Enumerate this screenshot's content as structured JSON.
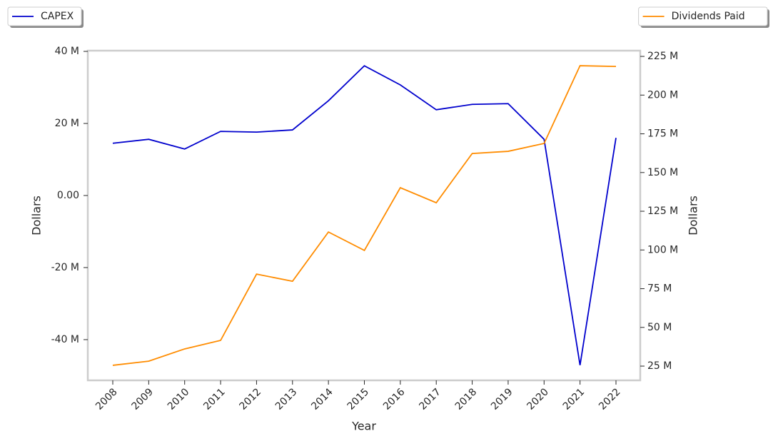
{
  "chart_data": {
    "type": "line",
    "x_label": "Year",
    "y_label": "Dollars",
    "y2_label": "Dollars",
    "categories": [
      "2008",
      "2009",
      "2010",
      "2011",
      "2012",
      "2013",
      "2014",
      "2015",
      "2016",
      "2017",
      "2018",
      "2019",
      "2020",
      "2021",
      "2022"
    ],
    "series": [
      {
        "name": "CAPEX",
        "color": "#0000cd",
        "axis": "y",
        "legend": "upper left",
        "values": [
          14500000,
          15600000,
          12900000,
          17800000,
          17600000,
          18200000,
          26300000,
          36000000,
          30700000,
          23800000,
          25300000,
          25500000,
          15600000,
          -47100000,
          16000000
        ]
      },
      {
        "name": "Dividends Paid",
        "color": "#ff8c00",
        "axis": "y2",
        "legend": "upper right",
        "values": [
          25500000,
          28200000,
          36100000,
          41600000,
          84400000,
          79800000,
          111600000,
          99700000,
          140200000,
          130500000,
          162300000,
          163700000,
          168800000,
          219000000,
          218500000
        ]
      }
    ],
    "ylim": [
      -51300000,
      40200000
    ],
    "yticks": [
      {
        "value": 40000000,
        "label": "40 M"
      },
      {
        "value": 20000000,
        "label": "20 M"
      },
      {
        "value": 0,
        "label": "0.00"
      },
      {
        "value": -20000000,
        "label": "-20 M"
      },
      {
        "value": -40000000,
        "label": "-40 M"
      }
    ],
    "y2lim": [
      15800000,
      228700000
    ],
    "y2ticks": [
      {
        "value": 225000000,
        "label": "225 M"
      },
      {
        "value": 200000000,
        "label": "200 M"
      },
      {
        "value": 175000000,
        "label": "175 M"
      },
      {
        "value": 150000000,
        "label": "150 M"
      },
      {
        "value": 125000000,
        "label": "125 M"
      },
      {
        "value": 100000000,
        "label": "100 M"
      },
      {
        "value": 75000000,
        "label": "75 M"
      },
      {
        "value": 50000000,
        "label": "50 M"
      },
      {
        "value": 25000000,
        "label": "25 M"
      }
    ],
    "grid": false
  }
}
